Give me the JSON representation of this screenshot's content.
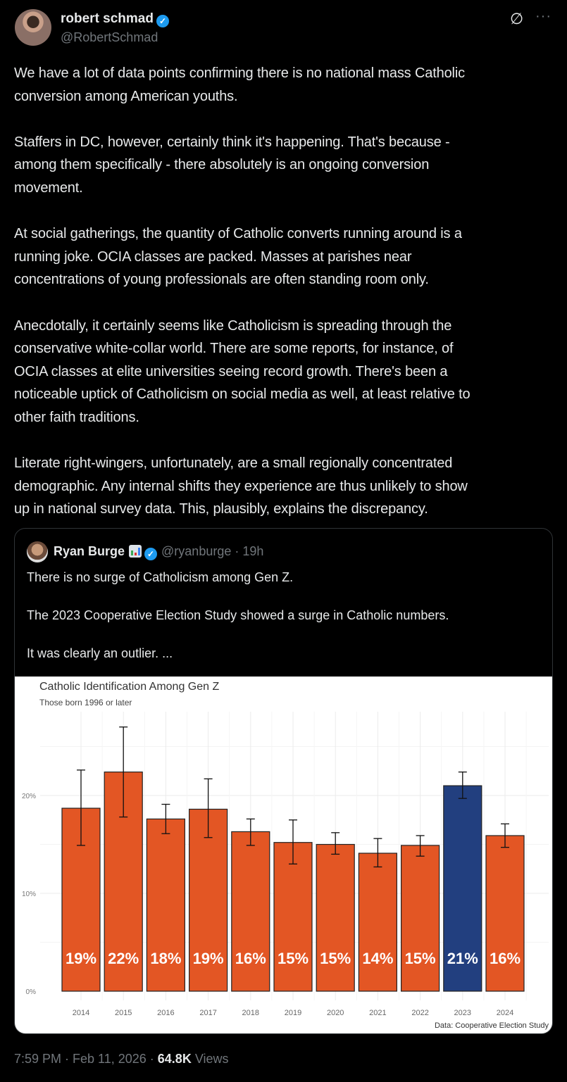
{
  "author": {
    "name": "robert schmad",
    "handle": "@RobertSchmad"
  },
  "icons": {
    "verified": "verified-badge-icon",
    "grok": "grok-icon",
    "more": "more-icon"
  },
  "tweet": {
    "paragraphs": [
      "We have a lot of data points confirming there is no national mass Catholic\nconversion among American youths.",
      "Staffers in DC, however, certainly think it's happening. That's because -\namong them specifically - there absolutely is an ongoing conversion\nmovement.",
      "At social gatherings, the quantity of Catholic converts running around is a\nrunning joke. OCIA classes are packed. Masses at parishes near\nconcentrations of young professionals are often standing room only.",
      "Anecdotally, it certainly seems like Catholicism is spreading through the\nconservative white-collar world. There are some reports, for instance, of\nOCIA classes at elite universities seeing record growth. There's been a\nnoticeable uptick of Catholicism on social media as well, at least relative to\nother faith traditions.",
      "Literate right-wingers, unfortunately, are a small regionally concentrated\ndemographic. Any internal shifts they experience are thus unlikely to show\nup in national survey data. This, plausibly, explains the discrepancy."
    ]
  },
  "quote": {
    "name": "Ryan Burge",
    "handle": "@ryanburge",
    "time": "· 19h",
    "paragraphs": [
      "There is no surge of Catholicism among Gen Z.",
      "The 2023 Cooperative Election Study showed a surge in Catholic numbers.",
      "It was clearly an outlier. ..."
    ]
  },
  "chart_data": {
    "type": "bar",
    "title": "Catholic Identification Among Gen Z",
    "subtitle": "Those born 1996 or later",
    "caption": "Data: Cooperative Election Study",
    "categories": [
      "2014",
      "2015",
      "2016",
      "2017",
      "2018",
      "2019",
      "2020",
      "2021",
      "2022",
      "2023",
      "2024"
    ],
    "values": [
      18.7,
      22.4,
      17.6,
      18.6,
      16.3,
      15.2,
      15.0,
      14.1,
      14.9,
      21.0,
      15.9
    ],
    "labels": [
      "19%",
      "22%",
      "18%",
      "19%",
      "16%",
      "15%",
      "15%",
      "14%",
      "15%",
      "21%",
      "16%"
    ],
    "error_low": [
      14.9,
      17.8,
      16.1,
      15.7,
      14.9,
      13.0,
      14.0,
      12.7,
      13.8,
      19.7,
      14.7
    ],
    "error_high": [
      22.6,
      27.0,
      19.1,
      21.7,
      17.6,
      17.5,
      16.2,
      15.6,
      15.9,
      22.4,
      17.1
    ],
    "highlight": "2023",
    "colors": {
      "default": "#e35624",
      "highlight": "#223f7f"
    },
    "yticks": [
      0,
      10,
      20
    ],
    "ytick_labels": [
      "0%",
      "10%",
      "20%"
    ],
    "ylim": [
      0,
      28.5
    ],
    "grid": true
  },
  "footer": {
    "time": "7:59 PM · Feb 11, 2026 · ",
    "views": "64.8K",
    "views_label": " Views"
  }
}
